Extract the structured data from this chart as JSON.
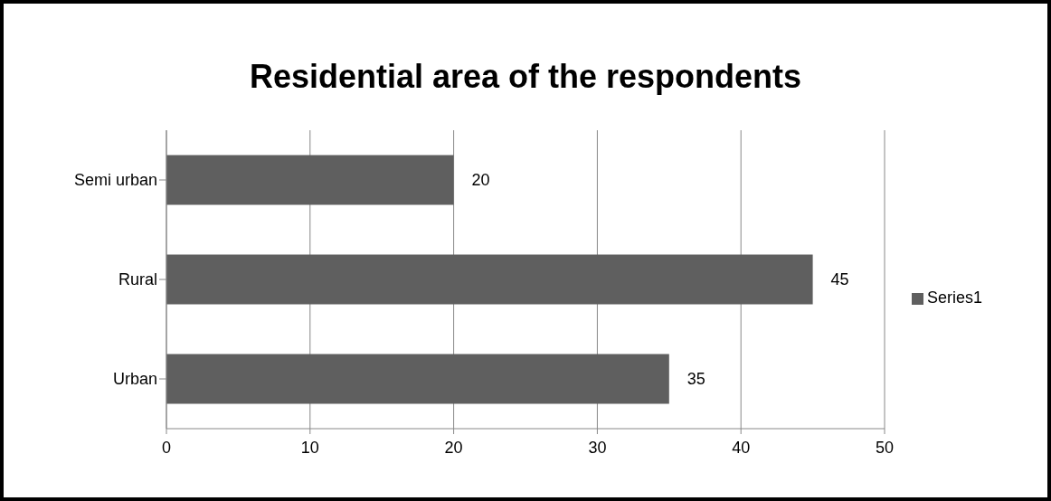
{
  "chart_data": {
    "type": "bar",
    "orientation": "horizontal",
    "title": "Residential area of the respondents",
    "categories": [
      "Semi urban",
      "Rural",
      "Urban"
    ],
    "series": [
      {
        "name": "Series1",
        "color": "#5f5f5f",
        "values": [
          20,
          45,
          35
        ]
      }
    ],
    "xlim": [
      0,
      50
    ],
    "xticks": [
      0,
      10,
      20,
      30,
      40,
      50
    ],
    "grid": "x",
    "legend": "right",
    "data_labels": true
  }
}
